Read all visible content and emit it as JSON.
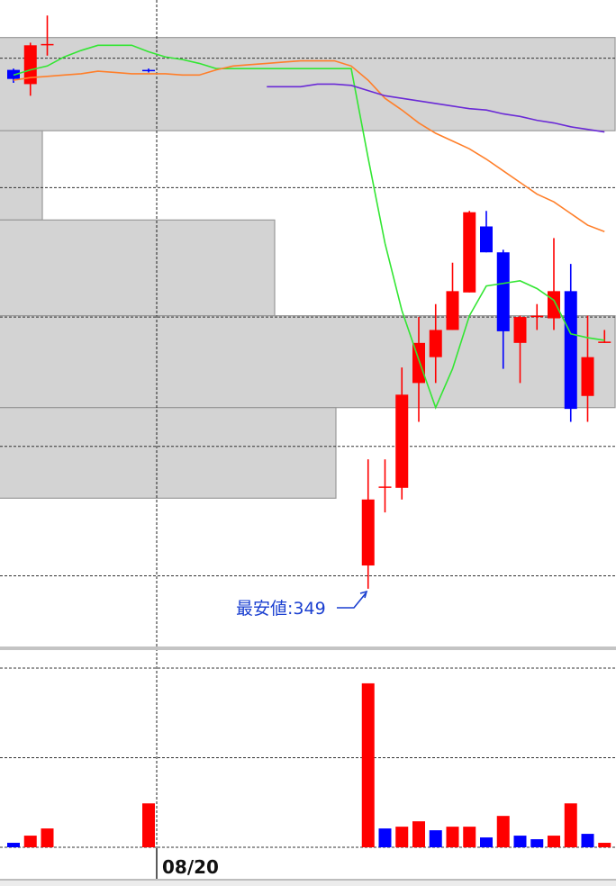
{
  "chart_data": [
    {
      "type": "candlestick",
      "categories": [
        null,
        null,
        null,
        null,
        null,
        null,
        null,
        null,
        null,
        null,
        null,
        null,
        null,
        null,
        null,
        null,
        null,
        null,
        null,
        null,
        null,
        null,
        null,
        null,
        null,
        null,
        null,
        null,
        null,
        null,
        null,
        null,
        null,
        null,
        null,
        null
      ],
      "open": [
        389.1,
        388.0,
        391.0,
        null,
        null,
        null,
        null,
        null,
        389.1,
        null,
        null,
        null,
        null,
        null,
        null,
        null,
        null,
        null,
        null,
        null,
        null,
        350.8,
        356.8,
        356.8,
        364.9,
        366.9,
        369.0,
        371.9,
        377.0,
        375.0,
        368.0,
        370.0,
        369.9,
        372.0,
        363.9,
        368.0
      ],
      "high": [
        389.2,
        391.2,
        393.3,
        null,
        null,
        null,
        null,
        null,
        389.2,
        null,
        null,
        null,
        null,
        null,
        null,
        null,
        null,
        null,
        null,
        null,
        null,
        359.0,
        359.0,
        366.1,
        370.0,
        371.0,
        374.2,
        378.2,
        378.2,
        375.2,
        370.1,
        371.0,
        376.1,
        374.1,
        370.1,
        369.0
      ],
      "low": [
        388.1,
        387.1,
        390.2,
        null,
        null,
        null,
        null,
        null,
        388.9,
        null,
        null,
        null,
        null,
        null,
        null,
        null,
        null,
        null,
        null,
        null,
        null,
        349,
        354.9,
        355.9,
        361.9,
        364.9,
        369.0,
        371.9,
        375.0,
        366.0,
        364.9,
        369.0,
        369.0,
        361.9,
        361.9,
        368.0
      ],
      "close": [
        388.4,
        391.0,
        391.1,
        null,
        null,
        null,
        null,
        null,
        389.0,
        null,
        null,
        null,
        null,
        null,
        null,
        null,
        null,
        null,
        null,
        null,
        null,
        355.9,
        356.9,
        364.0,
        368.0,
        369.0,
        372.0,
        378.1,
        375.0,
        368.9,
        370.0,
        370.1,
        372.0,
        362.9,
        366.9,
        368.1
      ],
      "up_color": "#ff0000",
      "down_color": "#0000ff",
      "series": [
        {
          "color": "#33e633",
          "values": [
            388.7,
            389.1,
            389.4,
            390.1,
            390.6,
            391.0,
            391.0,
            391.0,
            390.5,
            390.1,
            389.9,
            389.6,
            389.2,
            389.2,
            389.2,
            389.2,
            389.2,
            389.2,
            389.2,
            389.2,
            389.2,
            382.3,
            375.7,
            370.5,
            366.7,
            363.0,
            366.0,
            370.1,
            372.4,
            372.6,
            372.8,
            372.2,
            371.3,
            368.7,
            368.4,
            368.2
          ]
        },
        {
          "color": "#ff7f2a",
          "values": [
            388.3,
            388.5,
            388.6,
            388.7,
            388.8,
            389.0,
            388.9,
            388.8,
            388.8,
            388.8,
            388.7,
            388.7,
            389.1,
            389.4,
            389.5,
            389.6,
            389.7,
            389.8,
            389.8,
            389.8,
            389.4,
            388.3,
            386.9,
            386.0,
            385.0,
            384.2,
            383.6,
            383.0,
            382.2,
            381.3,
            380.4,
            379.5,
            378.9,
            378.0,
            377.1,
            376.6
          ]
        },
        {
          "color": "#6a2ad6",
          "values": [
            null,
            null,
            null,
            null,
            null,
            null,
            null,
            null,
            null,
            null,
            null,
            null,
            null,
            null,
            null,
            387.8,
            387.8,
            387.8,
            388.0,
            388.0,
            387.9,
            387.5,
            387.1,
            386.9,
            386.7,
            386.5,
            386.3,
            386.1,
            386.0,
            385.7,
            385.5,
            385.2,
            385.0,
            384.7,
            384.5,
            384.3
          ]
        }
      ],
      "price_profile": {
        "color": "#d3d3d3",
        "edges": [
          391.6,
          384.4,
          377.5,
          370.1,
          363.0,
          356.0
        ],
        "values": [
          684,
          48,
          306,
          684,
          374
        ]
      },
      "ylim": [
        344.4,
        394.5
      ],
      "yticks": [
        350,
        360,
        370,
        380,
        390
      ],
      "grid": true,
      "annotation": "最安値:349"
    },
    {
      "type": "bar",
      "values": [
        5,
        13,
        21,
        null,
        null,
        null,
        null,
        null,
        49,
        null,
        null,
        null,
        null,
        null,
        null,
        null,
        null,
        null,
        null,
        null,
        null,
        183,
        21,
        23,
        29,
        19,
        23,
        23,
        11,
        35,
        13,
        9,
        13,
        49,
        15,
        5
      ],
      "colors": [
        "#0000ff",
        "#ff0000",
        "#ff0000",
        null,
        null,
        null,
        null,
        null,
        "#ff0000",
        null,
        null,
        null,
        null,
        null,
        null,
        null,
        null,
        null,
        null,
        null,
        null,
        "#ff0000",
        "#0000ff",
        "#ff0000",
        "#ff0000",
        "#0000ff",
        "#ff0000",
        "#ff0000",
        "#0000ff",
        "#ff0000",
        "#0000ff",
        "#0000ff",
        "#ff0000",
        "#ff0000",
        "#0000ff",
        "#ff0000"
      ],
      "ylim": [
        0,
        200
      ],
      "yticks": [
        0,
        100,
        200
      ],
      "grid": true,
      "cursor_label": "08/20"
    }
  ]
}
